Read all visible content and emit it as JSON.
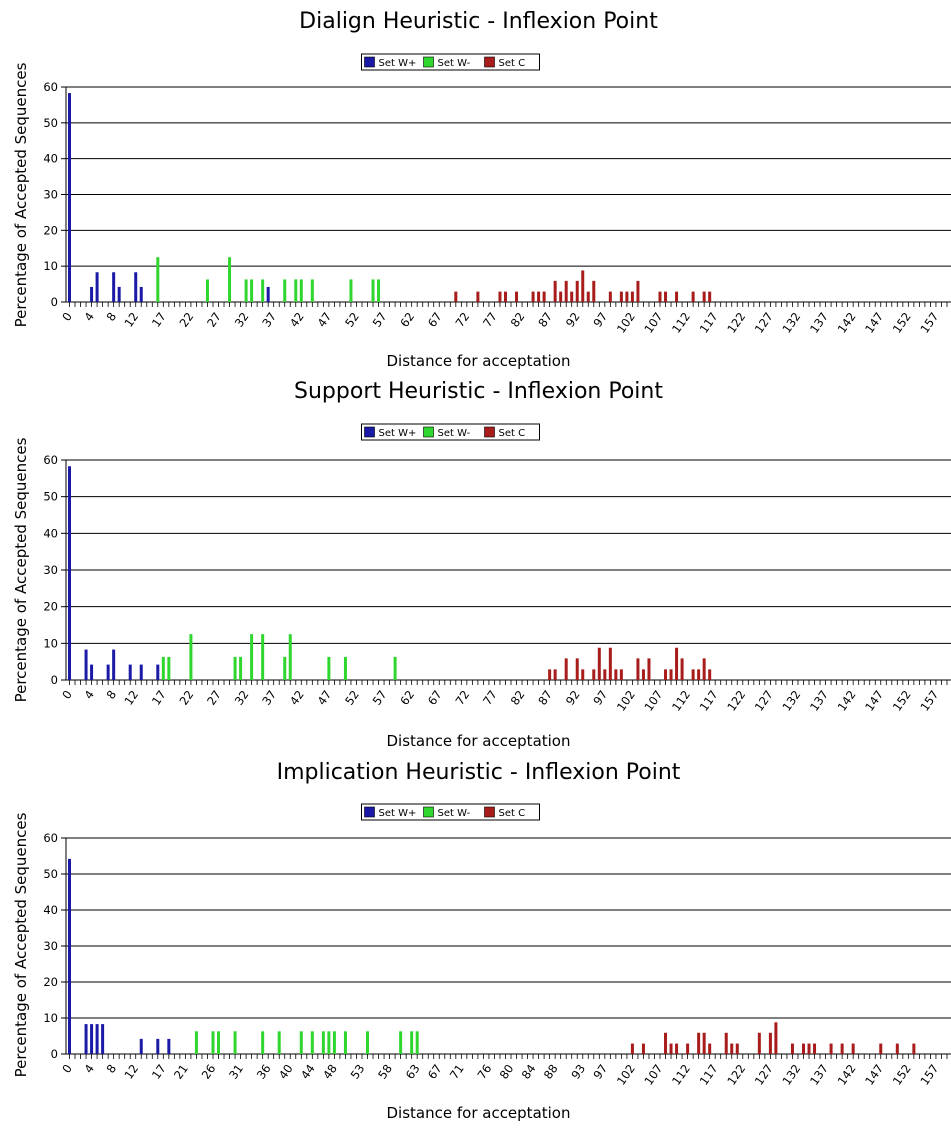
{
  "colors": {
    "w_plus": "#1a1aa6",
    "w_minus": "#2ed62e",
    "c": "#a81c1c",
    "grid": "#000000"
  },
  "chart_data": [
    {
      "type": "bar",
      "title": "Dialign Heuristic - Inflexion Point",
      "xlabel": "Distance for acceptation",
      "ylabel": "Percentage of Accepted Sequences",
      "ylim": [
        0,
        60
      ],
      "yticks": [
        0,
        10,
        20,
        30,
        40,
        50,
        60
      ],
      "grid": true,
      "legend_placement": "top-center",
      "xlim": [
        0,
        160
      ],
      "xticks": [
        0,
        4,
        8,
        12,
        17,
        22,
        27,
        32,
        37,
        42,
        47,
        52,
        57,
        62,
        67,
        72,
        77,
        82,
        87,
        92,
        97,
        102,
        107,
        112,
        117,
        122,
        127,
        132,
        137,
        142,
        147,
        152,
        157
      ],
      "series": [
        {
          "name": "Set W+",
          "color_key": "w_plus",
          "x": [
            0,
            4,
            5,
            8,
            9,
            12,
            13,
            36
          ],
          "values": [
            58.3,
            4.2,
            8.3,
            8.3,
            4.2,
            8.3,
            4.2,
            4.2
          ]
        },
        {
          "name": "Set W-",
          "color_key": "w_minus",
          "x": [
            16,
            25,
            29,
            32,
            33,
            35,
            39,
            41,
            42,
            44,
            51,
            55,
            56
          ],
          "values": [
            12.5,
            6.3,
            12.5,
            6.3,
            6.3,
            6.3,
            6.3,
            6.3,
            6.3,
            6.3,
            6.3,
            6.3,
            6.3
          ]
        },
        {
          "name": "Set C",
          "color_key": "c",
          "x": [
            70,
            74,
            78,
            79,
            81,
            84,
            85,
            86,
            88,
            89,
            90,
            91,
            92,
            93,
            94,
            95,
            98,
            100,
            101,
            102,
            103,
            107,
            108,
            110,
            113,
            115,
            116
          ],
          "values": [
            2.9,
            2.9,
            2.9,
            2.9,
            2.9,
            2.9,
            2.9,
            2.9,
            5.9,
            2.9,
            5.9,
            2.9,
            5.9,
            8.8,
            2.9,
            5.9,
            2.9,
            2.9,
            2.9,
            2.9,
            5.9,
            2.9,
            2.9,
            2.9,
            2.9,
            2.9,
            2.9
          ]
        }
      ]
    },
    {
      "type": "bar",
      "title": "Support Heuristic - Inflexion Point",
      "xlabel": "Distance for acceptation",
      "ylabel": "Percentage of Accepted Sequences",
      "ylim": [
        0,
        60
      ],
      "yticks": [
        0,
        10,
        20,
        30,
        40,
        50,
        60
      ],
      "grid": true,
      "legend_placement": "top-center",
      "xlim": [
        0,
        160
      ],
      "xticks": [
        0,
        4,
        8,
        12,
        17,
        22,
        27,
        32,
        37,
        42,
        47,
        52,
        57,
        62,
        67,
        72,
        77,
        82,
        87,
        92,
        97,
        102,
        107,
        112,
        117,
        122,
        127,
        132,
        137,
        142,
        147,
        152,
        157
      ],
      "series": [
        {
          "name": "Set W+",
          "color_key": "w_plus",
          "x": [
            0,
            3,
            4,
            7,
            8,
            11,
            13,
            16
          ],
          "values": [
            58.3,
            8.3,
            4.2,
            4.2,
            8.3,
            4.2,
            4.2,
            4.2
          ]
        },
        {
          "name": "Set W-",
          "color_key": "w_minus",
          "x": [
            17,
            18,
            22,
            30,
            31,
            33,
            35,
            39,
            40,
            47,
            50,
            59
          ],
          "values": [
            6.3,
            6.3,
            12.5,
            6.3,
            6.3,
            12.5,
            12.5,
            6.3,
            12.5,
            6.3,
            6.3,
            6.3
          ]
        },
        {
          "name": "Set C",
          "color_key": "c",
          "x": [
            87,
            88,
            90,
            92,
            93,
            95,
            96,
            97,
            98,
            99,
            100,
            103,
            104,
            105,
            108,
            109,
            110,
            111,
            113,
            114,
            115,
            116
          ],
          "values": [
            2.9,
            2.9,
            5.9,
            5.9,
            2.9,
            2.9,
            8.8,
            2.9,
            8.8,
            2.9,
            2.9,
            5.9,
            2.9,
            5.9,
            2.9,
            2.9,
            8.8,
            5.9,
            2.9,
            2.9,
            5.9,
            2.9
          ]
        }
      ]
    },
    {
      "type": "bar",
      "title": "Implication Heuristic - Inflexion Point",
      "xlabel": "Distance for acceptation",
      "ylabel": "Percentage of Accepted Sequences",
      "ylim": [
        0,
        60
      ],
      "yticks": [
        0,
        10,
        20,
        30,
        40,
        50,
        60
      ],
      "grid": true,
      "legend_placement": "top-center",
      "xlim": [
        0,
        160
      ],
      "xticks": [
        0,
        4,
        8,
        12,
        17,
        21,
        26,
        31,
        36,
        40,
        44,
        48,
        53,
        58,
        63,
        67,
        71,
        76,
        80,
        84,
        88,
        93,
        97,
        102,
        107,
        112,
        117,
        122,
        127,
        132,
        137,
        142,
        147,
        152,
        157
      ],
      "series": [
        {
          "name": "Set W+",
          "color_key": "w_plus",
          "x": [
            0,
            3,
            4,
            5,
            6,
            13,
            16,
            18
          ],
          "values": [
            54.2,
            8.3,
            8.3,
            8.3,
            8.3,
            4.2,
            4.2,
            4.2
          ]
        },
        {
          "name": "Set W-",
          "color_key": "w_minus",
          "x": [
            23,
            26,
            27,
            30,
            35,
            38,
            42,
            44,
            46,
            47,
            48,
            50,
            54,
            60,
            62,
            63
          ],
          "values": [
            6.3,
            6.3,
            6.3,
            6.3,
            6.3,
            6.3,
            6.3,
            6.3,
            6.3,
            6.3,
            6.3,
            6.3,
            6.3,
            6.3,
            6.3,
            6.3
          ]
        },
        {
          "name": "Set C",
          "color_key": "c",
          "x": [
            102,
            104,
            108,
            109,
            110,
            112,
            114,
            115,
            116,
            119,
            120,
            121,
            125,
            127,
            128,
            131,
            133,
            134,
            135,
            138,
            140,
            142,
            147,
            150,
            153
          ],
          "values": [
            2.9,
            2.9,
            5.9,
            2.9,
            2.9,
            2.9,
            5.9,
            5.9,
            2.9,
            5.9,
            2.9,
            2.9,
            5.9,
            5.9,
            8.8,
            2.9,
            2.9,
            2.9,
            2.9,
            2.9,
            2.9,
            2.9,
            2.9,
            2.9,
            2.9
          ]
        }
      ]
    }
  ]
}
